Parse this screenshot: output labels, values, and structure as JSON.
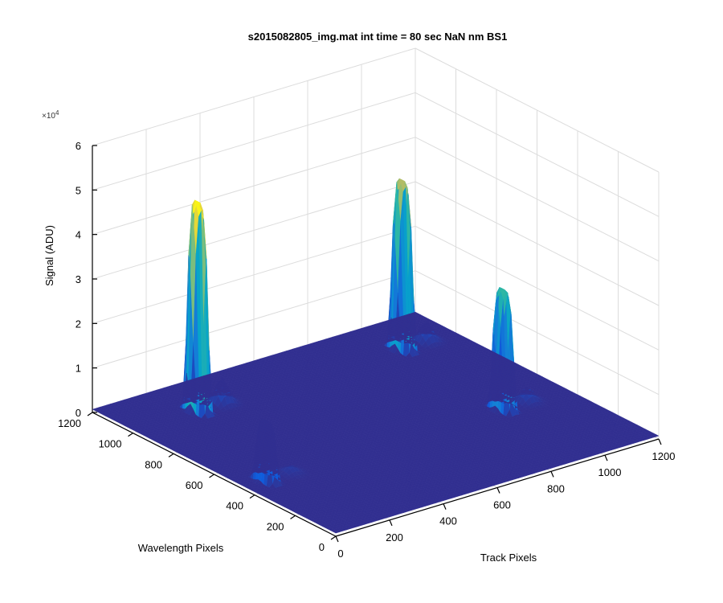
{
  "chart_data": {
    "type": "surface3d",
    "title": "s2015082805_img.mat int time = 80 sec  NaN nm BS1",
    "xlabel": "Track Pixels",
    "ylabel": "Wavelength Pixels",
    "zlabel": "Signal (ADU)",
    "z_multiplier": "×10",
    "z_multiplier_exp": "4",
    "xlim": [
      0,
      1200
    ],
    "ylim": [
      0,
      1200
    ],
    "zlim": [
      0,
      60000
    ],
    "x_ticks": [
      "0",
      "200",
      "400",
      "600",
      "800",
      "1000",
      "1200"
    ],
    "y_ticks": [
      "0",
      "200",
      "400",
      "600",
      "800",
      "1000",
      "1200"
    ],
    "z_ticks": [
      "0",
      "1",
      "2",
      "3",
      "4",
      "5",
      "6"
    ],
    "grid": true,
    "colormap": "parula",
    "colors": [
      "#352a87",
      "#0f5cdd",
      "#1481d6",
      "#06a4ca",
      "#2eb7a4",
      "#87bf77",
      "#d1bb59",
      "#fefb0f"
    ],
    "peaks": [
      {
        "x": 240,
        "y": 1000,
        "z": 47000
      },
      {
        "x": 80,
        "y": 450,
        "z": 13500
      },
      {
        "x": 1000,
        "y": 1000,
        "z": 38000
      },
      {
        "x": 960,
        "y": 450,
        "z": 27000
      }
    ],
    "baseline": 700
  }
}
